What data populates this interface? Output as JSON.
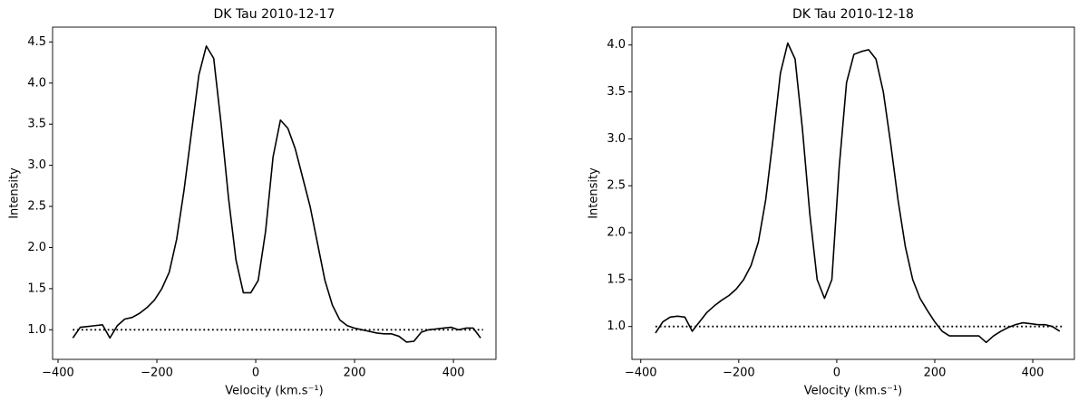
{
  "chart_data": [
    {
      "type": "line",
      "title": "DK Tau 2010-12-17",
      "xlabel": "Velocity (km.s⁻¹)",
      "ylabel": "Intensity",
      "xlim": [
        -411,
        486
      ],
      "ylim": [
        0.64,
        4.68
      ],
      "xticks": [
        {
          "value": -400,
          "label": "−400"
        },
        {
          "value": -200,
          "label": "−200"
        },
        0,
        200,
        400
      ],
      "yticks": [
        {
          "value": 1,
          "label": "1.0"
        },
        1.5,
        {
          "value": 2,
          "label": "2.0"
        },
        2.5,
        {
          "value": 3,
          "label": "3.0"
        },
        3.5,
        {
          "value": 4,
          "label": "4.0"
        },
        4.5
      ],
      "series": [
        {
          "color": "#000000",
          "style": "solid",
          "x": [
            -370,
            -355,
            -340,
            -325,
            -310,
            -295,
            -280,
            -265,
            -250,
            -235,
            -220,
            -205,
            -190,
            -175,
            -160,
            -145,
            -130,
            -115,
            -100,
            -85,
            -70,
            -55,
            -40,
            -25,
            -10,
            5,
            20,
            35,
            50,
            65,
            80,
            95,
            110,
            125,
            140,
            155,
            170,
            185,
            200,
            215,
            230,
            245,
            260,
            275,
            290,
            305,
            320,
            335,
            350,
            365,
            380,
            395,
            410,
            425,
            440,
            455
          ],
          "values": [
            0.9,
            1.03,
            1.04,
            1.05,
            1.06,
            0.9,
            1.05,
            1.13,
            1.15,
            1.2,
            1.27,
            1.36,
            1.5,
            1.7,
            2.1,
            2.7,
            3.4,
            4.1,
            4.45,
            4.3,
            3.5,
            2.6,
            1.85,
            1.45,
            1.45,
            1.6,
            2.2,
            3.1,
            3.55,
            3.45,
            3.2,
            2.85,
            2.5,
            2.05,
            1.6,
            1.3,
            1.12,
            1.05,
            1.02,
            1.0,
            0.98,
            0.96,
            0.95,
            0.95,
            0.92,
            0.85,
            0.86,
            0.97,
            1.0,
            1.01,
            1.02,
            1.03,
            1.0,
            1.02,
            1.02,
            0.9
          ]
        },
        {
          "color": "#000000",
          "style": "dotted",
          "x": [
            -370,
            460
          ],
          "values": [
            1,
            1
          ]
        }
      ]
    },
    {
      "type": "line",
      "title": "DK Tau 2010-12-18",
      "xlabel": "Velocity (km.s⁻¹)",
      "ylabel": "Intensity",
      "xlim": [
        -418,
        485
      ],
      "ylim": [
        0.65,
        4.19
      ],
      "xticks": [
        {
          "value": -400,
          "label": "−400"
        },
        {
          "value": -200,
          "label": "−200"
        },
        0,
        200,
        400
      ],
      "yticks": [
        {
          "value": 1,
          "label": "1.0"
        },
        1.5,
        {
          "value": 2,
          "label": "2.0"
        },
        2.5,
        {
          "value": 3,
          "label": "3.0"
        },
        3.5,
        {
          "value": 4,
          "label": "4.0"
        }
      ],
      "series": [
        {
          "color": "#000000",
          "style": "solid",
          "x": [
            -370,
            -355,
            -340,
            -325,
            -310,
            -295,
            -280,
            -265,
            -250,
            -235,
            -220,
            -205,
            -190,
            -175,
            -160,
            -145,
            -130,
            -115,
            -100,
            -85,
            -70,
            -55,
            -40,
            -25,
            -10,
            5,
            20,
            35,
            50,
            65,
            80,
            95,
            110,
            125,
            140,
            155,
            170,
            185,
            200,
            215,
            230,
            245,
            260,
            275,
            290,
            305,
            320,
            335,
            350,
            365,
            380,
            395,
            410,
            425,
            440,
            455
          ],
          "values": [
            0.93,
            1.05,
            1.1,
            1.11,
            1.1,
            0.95,
            1.05,
            1.15,
            1.22,
            1.28,
            1.33,
            1.4,
            1.5,
            1.65,
            1.9,
            2.35,
            3.0,
            3.7,
            4.02,
            3.85,
            3.1,
            2.2,
            1.5,
            1.3,
            1.5,
            2.7,
            3.6,
            3.9,
            3.93,
            3.95,
            3.85,
            3.5,
            2.95,
            2.35,
            1.85,
            1.5,
            1.3,
            1.17,
            1.05,
            0.95,
            0.9,
            0.9,
            0.9,
            0.9,
            0.9,
            0.83,
            0.9,
            0.95,
            0.99,
            1.02,
            1.04,
            1.03,
            1.02,
            1.02,
            1.0,
            0.95
          ]
        },
        {
          "color": "#000000",
          "style": "dotted",
          "x": [
            -370,
            460
          ],
          "values": [
            1,
            1
          ]
        }
      ]
    }
  ]
}
